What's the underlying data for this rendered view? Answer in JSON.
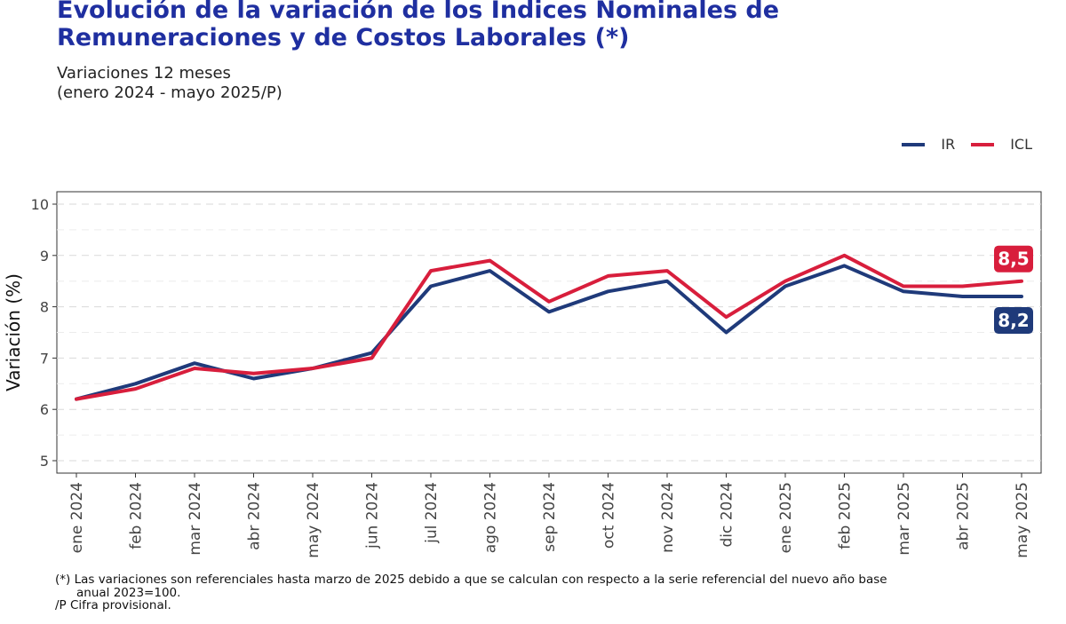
{
  "header": {
    "title_line1": "Evolución de la variación de los Índices Nominales de",
    "title_line2": "Remuneraciones y de Costos Laborales (*)",
    "subtitle_line1": "Variaciones 12 meses",
    "subtitle_line2": "(enero 2024 - mayo 2025/P)"
  },
  "footnotes": {
    "note1_line1": "(*) Las variaciones son referenciales hasta marzo de 2025 debido a que se calculan con respecto a la serie referencial del nuevo año base",
    "note1_line2": "anual 2023=100.",
    "note2": "/P Cifra provisional."
  },
  "chart_data": {
    "type": "line",
    "title": "Evolución de la variación de los Índices Nominales de Remuneraciones y de Costos Laborales (*)",
    "subtitle": "Variaciones 12 meses (enero 2024 - mayo 2025/P)",
    "xlabel": "",
    "ylabel": "Variación (%)",
    "ylim": [
      5,
      10
    ],
    "yticks": [
      5,
      6,
      7,
      8,
      9,
      10
    ],
    "grid": true,
    "legend_position": "top-right",
    "categories": [
      "ene 2024",
      "feb 2024",
      "mar 2024",
      "abr 2024",
      "may 2024",
      "jun 2024",
      "jul 2024",
      "ago 2024",
      "sep 2024",
      "oct 2024",
      "nov 2024",
      "dic 2024",
      "ene 2025",
      "feb 2025",
      "mar 2025",
      "abr 2025",
      "may 2025"
    ],
    "series": [
      {
        "name": "IR",
        "color": "#1f3a7a",
        "values": [
          6.2,
          6.5,
          6.9,
          6.6,
          6.8,
          7.1,
          8.4,
          8.7,
          7.9,
          8.3,
          8.5,
          7.5,
          8.4,
          8.8,
          8.3,
          8.2,
          8.2
        ],
        "end_label": "8,2"
      },
      {
        "name": "ICL",
        "color": "#d81e3c",
        "values": [
          6.2,
          6.4,
          6.8,
          6.7,
          6.8,
          7.0,
          8.7,
          8.9,
          8.1,
          8.6,
          8.7,
          7.8,
          8.5,
          9.0,
          8.4,
          8.4,
          8.5
        ],
        "end_label": "8,5"
      }
    ]
  }
}
